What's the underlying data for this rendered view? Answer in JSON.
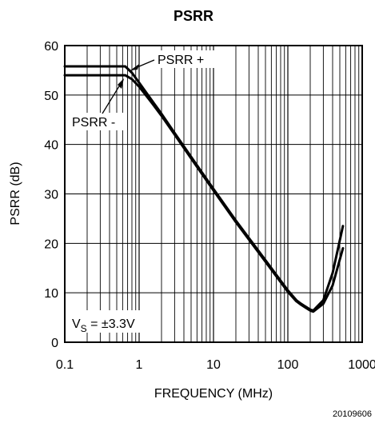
{
  "chart_data": {
    "type": "line",
    "title": "PSRR",
    "xlabel": "FREQUENCY (MHz)",
    "ylabel": "PSRR (dB)",
    "x_scale": "log",
    "xlim": [
      0.1,
      1000
    ],
    "ylim": [
      0,
      60
    ],
    "x_ticks": [
      0.1,
      1,
      10,
      100,
      1000
    ],
    "x_tick_labels": [
      "0.1",
      "1",
      "10",
      "100",
      "1000"
    ],
    "y_ticks": [
      0,
      10,
      20,
      30,
      40,
      50,
      60
    ],
    "y_tick_labels": [
      "0",
      "10",
      "20",
      "30",
      "40",
      "50",
      "60"
    ],
    "grid": true,
    "series": [
      {
        "name": "PSRR +",
        "x": [
          0.1,
          0.65,
          0.8,
          1,
          1.5,
          2,
          3,
          5,
          10,
          20,
          50,
          100,
          130,
          150,
          200,
          220,
          300,
          400,
          550
        ],
        "y": [
          55.8,
          55.8,
          54.5,
          52.5,
          48.8,
          46.2,
          42.3,
          37.5,
          31,
          24.6,
          16.6,
          10.5,
          8.5,
          7.8,
          6.6,
          6.4,
          8.5,
          14,
          23.5
        ]
      },
      {
        "name": "PSRR -",
        "x": [
          0.1,
          0.65,
          0.8,
          1,
          1.5,
          2,
          3,
          5,
          10,
          20,
          50,
          100,
          130,
          150,
          200,
          220,
          300,
          400,
          550
        ],
        "y": [
          54,
          54,
          53.2,
          51.7,
          48.3,
          45.8,
          42,
          37.2,
          30.7,
          24.3,
          16.3,
          10.2,
          8.3,
          7.6,
          6.4,
          6.2,
          7.8,
          11.5,
          19
        ]
      }
    ],
    "annotations": [
      {
        "text": "PSRR +",
        "target": "PSRR +"
      },
      {
        "text": "PSRR -",
        "target": "PSRR -"
      },
      {
        "text_main": "V",
        "text_sub": "S",
        "text_rest": " = ±3.3V"
      }
    ],
    "figure_id": "20109606"
  }
}
